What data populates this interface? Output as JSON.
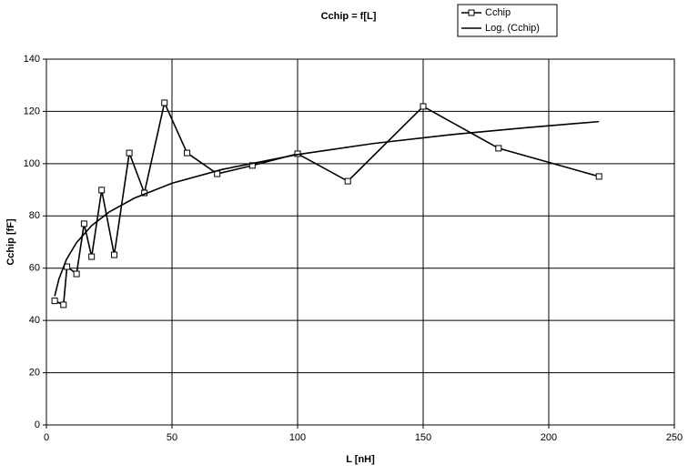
{
  "chart_data": {
    "type": "line",
    "title": "Cchip = f[L]",
    "x_label": "L [nH]",
    "y_label": "Cchip [fF]",
    "xlim": [
      0,
      250
    ],
    "xticks": [
      0,
      50,
      100,
      150,
      200,
      250
    ],
    "ylim": [
      0,
      140
    ],
    "yticks": [
      0,
      20,
      40,
      60,
      80,
      100,
      120,
      140
    ],
    "grid": true,
    "legend": "top-right",
    "series": [
      {
        "name": "Cchip",
        "color": "#000000",
        "marker": "square",
        "x": [
          3.3,
          6.8,
          8.2,
          12,
          15,
          18,
          22,
          27,
          33,
          39,
          47,
          56,
          68,
          82,
          100,
          120,
          150,
          180,
          220
        ],
        "values": [
          47.5,
          46,
          60.6,
          57.8,
          77,
          64.4,
          89.9,
          65.1,
          104.1,
          88.8,
          123.3,
          104.1,
          96.1,
          99.3,
          103.8,
          93.3,
          121.9,
          105.9,
          95.1
        ]
      },
      {
        "name": "Log. (Cchip)",
        "color": "#000000",
        "marker": "none",
        "x": [
          3.3,
          5,
          8,
          12,
          18,
          25,
          35,
          50,
          70,
          100,
          130,
          160,
          190,
          220
        ],
        "values": [
          49.3,
          55.9,
          63.4,
          69.8,
          76.3,
          81.5,
          86.8,
          92.5,
          97.8,
          103.5,
          107.7,
          111.0,
          113.7,
          116.1
        ]
      }
    ]
  }
}
